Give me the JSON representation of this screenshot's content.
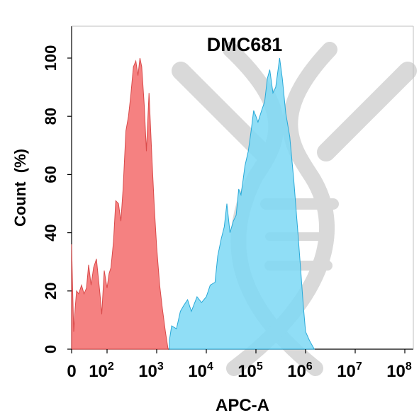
{
  "chart_data": {
    "type": "area",
    "title": "DMC681",
    "xlabel": "APC-A",
    "ylabel": "Count  (%)",
    "x_scale": "biexponential",
    "xlim": [
      0,
      100000000
    ],
    "ylim": [
      0,
      105
    ],
    "x_ticks": [
      {
        "label": "0",
        "base": "",
        "exp": ""
      },
      {
        "label": "",
        "base": "10",
        "exp": "2"
      },
      {
        "label": "",
        "base": "10",
        "exp": "3"
      },
      {
        "label": "",
        "base": "10",
        "exp": "4"
      },
      {
        "label": "",
        "base": "10",
        "exp": "5"
      },
      {
        "label": "",
        "base": "10",
        "exp": "6"
      },
      {
        "label": "",
        "base": "10",
        "exp": "7"
      },
      {
        "label": "",
        "base": "10",
        "exp": "8"
      }
    ],
    "y_ticks": [
      "0",
      "20",
      "40",
      "60",
      "80",
      "100"
    ],
    "y_tick_values": [
      0,
      20,
      40,
      60,
      80,
      100
    ],
    "grid": false,
    "legend": "none",
    "watermark_color": "#d9d9d9",
    "series": [
      {
        "fill": "#f36b6b",
        "stroke": "#d94a4a",
        "points": [
          [
            0,
            36
          ],
          [
            3,
            20
          ],
          [
            6,
            6
          ],
          [
            10,
            14
          ],
          [
            14,
            20
          ],
          [
            20,
            19
          ],
          [
            28,
            22
          ],
          [
            35,
            19
          ],
          [
            42,
            21
          ],
          [
            48,
            29
          ],
          [
            55,
            22
          ],
          [
            62,
            28
          ],
          [
            70,
            31
          ],
          [
            75,
            25
          ],
          [
            80,
            19
          ],
          [
            85,
            12
          ],
          [
            92,
            27
          ],
          [
            100,
            21
          ],
          [
            110,
            26
          ],
          [
            120,
            28
          ],
          [
            135,
            37
          ],
          [
            150,
            51
          ],
          [
            170,
            50
          ],
          [
            190,
            44
          ],
          [
            210,
            55
          ],
          [
            240,
            75
          ],
          [
            270,
            80
          ],
          [
            300,
            87
          ],
          [
            340,
            97
          ],
          [
            380,
            99
          ],
          [
            420,
            94
          ],
          [
            460,
            100
          ],
          [
            500,
            97
          ],
          [
            560,
            84
          ],
          [
            620,
            68
          ],
          [
            700,
            88
          ],
          [
            800,
            66
          ],
          [
            900,
            48
          ],
          [
            1000,
            35
          ],
          [
            1150,
            22
          ],
          [
            1300,
            14
          ],
          [
            1500,
            6
          ],
          [
            1700,
            0
          ]
        ]
      },
      {
        "fill": "#7dd8f5",
        "stroke": "#29a9d8",
        "points": [
          [
            1800,
            3
          ],
          [
            2000,
            8
          ],
          [
            2500,
            7
          ],
          [
            3000,
            13
          ],
          [
            3500,
            15
          ],
          [
            4200,
            17
          ],
          [
            5000,
            13
          ],
          [
            6500,
            18
          ],
          [
            8000,
            16
          ],
          [
            10000,
            18
          ],
          [
            12000,
            22
          ],
          [
            15000,
            23
          ],
          [
            17000,
            32
          ],
          [
            20000,
            38
          ],
          [
            23000,
            42
          ],
          [
            26000,
            50
          ],
          [
            30000,
            40
          ],
          [
            35000,
            44
          ],
          [
            40000,
            46
          ],
          [
            45000,
            55
          ],
          [
            50000,
            53
          ],
          [
            55000,
            58
          ],
          [
            60000,
            63
          ],
          [
            70000,
            68
          ],
          [
            80000,
            75
          ],
          [
            90000,
            82
          ],
          [
            100000,
            80
          ],
          [
            110000,
            78
          ],
          [
            130000,
            82
          ],
          [
            150000,
            85
          ],
          [
            170000,
            93
          ],
          [
            190000,
            96
          ],
          [
            220000,
            88
          ],
          [
            250000,
            90
          ],
          [
            300000,
            100
          ],
          [
            340000,
            93
          ],
          [
            400000,
            81
          ],
          [
            480000,
            73
          ],
          [
            580000,
            58
          ],
          [
            700000,
            40
          ],
          [
            800000,
            27
          ],
          [
            900000,
            15
          ],
          [
            1000000,
            6
          ],
          [
            1200000,
            3
          ],
          [
            1500000,
            0
          ]
        ]
      }
    ]
  }
}
